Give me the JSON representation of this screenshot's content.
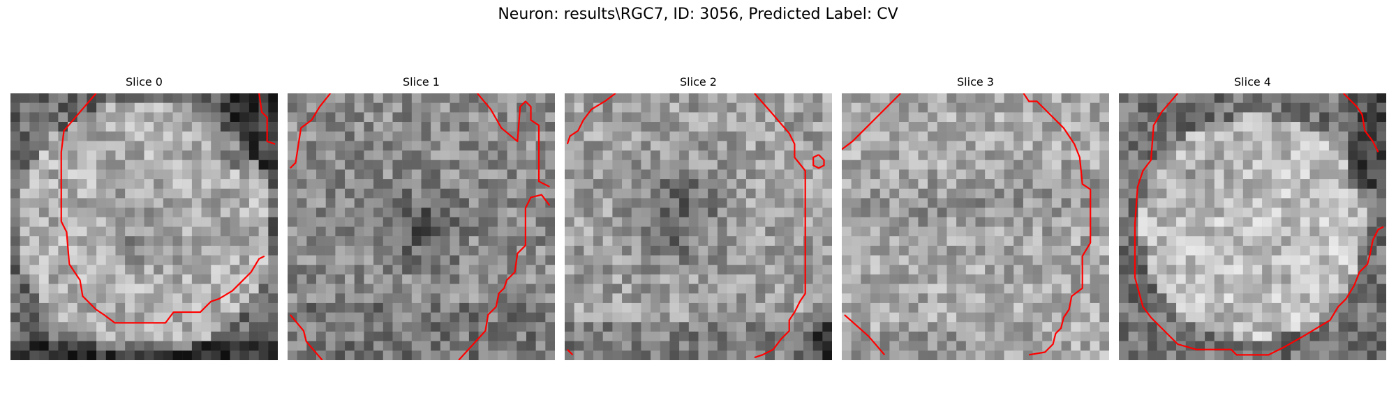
{
  "figure": {
    "title": "Neuron: results\\RGC7, ID: 3056, Predicted Label: CV"
  },
  "overlay_color": "#ff0000",
  "panels": [
    {
      "title": "Slice 0",
      "seed": 11,
      "profile": "bright_ring_dark_corners",
      "contours": [
        [
          [
            0.32,
            0.0
          ],
          [
            0.26,
            0.07
          ],
          [
            0.2,
            0.14
          ],
          [
            0.19,
            0.22
          ],
          [
            0.19,
            0.48
          ],
          [
            0.21,
            0.52
          ],
          [
            0.22,
            0.64
          ],
          [
            0.26,
            0.7
          ],
          [
            0.27,
            0.76
          ],
          [
            0.32,
            0.81
          ],
          [
            0.35,
            0.83
          ],
          [
            0.39,
            0.86
          ],
          [
            0.58,
            0.86
          ],
          [
            0.61,
            0.82
          ],
          [
            0.71,
            0.82
          ],
          [
            0.75,
            0.78
          ],
          [
            0.78,
            0.77
          ],
          [
            0.83,
            0.74
          ],
          [
            0.86,
            0.71
          ],
          [
            0.9,
            0.67
          ],
          [
            0.93,
            0.62
          ],
          [
            0.95,
            0.61
          ]
        ],
        [
          [
            0.93,
            0.0
          ],
          [
            0.94,
            0.07
          ],
          [
            0.96,
            0.09
          ],
          [
            0.96,
            0.18
          ],
          [
            0.99,
            0.19
          ]
        ]
      ]
    },
    {
      "title": "Slice 1",
      "seed": 23,
      "profile": "noisy_dark_nucleus",
      "contours": [
        [
          [
            0.16,
            0.0
          ],
          [
            0.12,
            0.05
          ],
          [
            0.09,
            0.1
          ],
          [
            0.05,
            0.13
          ],
          [
            0.03,
            0.26
          ],
          [
            0.01,
            0.28
          ]
        ],
        [
          [
            0.71,
            0.0
          ],
          [
            0.76,
            0.06
          ],
          [
            0.8,
            0.13
          ],
          [
            0.86,
            0.18
          ],
          [
            0.87,
            0.05
          ],
          [
            0.89,
            0.03
          ],
          [
            0.91,
            0.05
          ],
          [
            0.91,
            0.1
          ],
          [
            0.94,
            0.12
          ],
          [
            0.94,
            0.33
          ],
          [
            0.98,
            0.35
          ]
        ],
        [
          [
            0.98,
            0.42
          ],
          [
            0.95,
            0.38
          ],
          [
            0.91,
            0.39
          ],
          [
            0.89,
            0.43
          ],
          [
            0.89,
            0.57
          ],
          [
            0.86,
            0.6
          ],
          [
            0.85,
            0.67
          ],
          [
            0.82,
            0.7
          ],
          [
            0.81,
            0.73
          ],
          [
            0.79,
            0.75
          ],
          [
            0.78,
            0.8
          ],
          [
            0.75,
            0.83
          ],
          [
            0.74,
            0.89
          ],
          [
            0.64,
            1.0
          ]
        ],
        [
          [
            0.01,
            0.83
          ],
          [
            0.06,
            0.89
          ],
          [
            0.07,
            0.93
          ],
          [
            0.13,
            1.0
          ]
        ]
      ]
    },
    {
      "title": "Slice 2",
      "seed": 37,
      "profile": "dark_center_blob",
      "contours": [
        [
          [
            0.19,
            0.0
          ],
          [
            0.15,
            0.03
          ],
          [
            0.1,
            0.06
          ],
          [
            0.07,
            0.1
          ],
          [
            0.05,
            0.14
          ],
          [
            0.02,
            0.16
          ],
          [
            0.01,
            0.19
          ]
        ],
        [
          [
            0.71,
            0.0
          ],
          [
            0.78,
            0.08
          ],
          [
            0.84,
            0.15
          ],
          [
            0.86,
            0.19
          ],
          [
            0.86,
            0.24
          ],
          [
            0.9,
            0.29
          ],
          [
            0.9,
            0.75
          ],
          [
            0.88,
            0.78
          ],
          [
            0.86,
            0.82
          ],
          [
            0.84,
            0.85
          ],
          [
            0.84,
            0.89
          ],
          [
            0.81,
            0.92
          ],
          [
            0.78,
            0.96
          ],
          [
            0.74,
            0.98
          ],
          [
            0.71,
            0.99
          ]
        ],
        [
          [
            0.95,
            0.23
          ],
          [
            0.97,
            0.25
          ],
          [
            0.97,
            0.27
          ],
          [
            0.95,
            0.28
          ],
          [
            0.93,
            0.27
          ],
          [
            0.93,
            0.24
          ],
          [
            0.95,
            0.23
          ]
        ],
        [
          [
            0.01,
            0.96
          ],
          [
            0.03,
            0.98
          ]
        ]
      ]
    },
    {
      "title": "Slice 3",
      "seed": 53,
      "profile": "uniform_light",
      "contours": [
        [
          [
            0.22,
            0.0
          ],
          [
            0.14,
            0.08
          ],
          [
            0.09,
            0.13
          ],
          [
            0.04,
            0.18
          ],
          [
            0.0,
            0.21
          ]
        ],
        [
          [
            0.68,
            0.0
          ],
          [
            0.7,
            0.03
          ],
          [
            0.73,
            0.03
          ],
          [
            0.78,
            0.08
          ],
          [
            0.83,
            0.13
          ],
          [
            0.87,
            0.19
          ],
          [
            0.89,
            0.24
          ],
          [
            0.9,
            0.34
          ],
          [
            0.93,
            0.36
          ],
          [
            0.93,
            0.56
          ],
          [
            0.9,
            0.61
          ],
          [
            0.9,
            0.73
          ],
          [
            0.86,
            0.76
          ],
          [
            0.85,
            0.81
          ],
          [
            0.83,
            0.84
          ],
          [
            0.82,
            0.88
          ],
          [
            0.8,
            0.9
          ],
          [
            0.79,
            0.94
          ],
          [
            0.76,
            0.97
          ],
          [
            0.7,
            0.98
          ]
        ],
        [
          [
            0.01,
            0.83
          ],
          [
            0.1,
            0.91
          ],
          [
            0.16,
            0.98
          ]
        ]
      ]
    },
    {
      "title": "Slice 4",
      "seed": 71,
      "profile": "bright_disc_dark_rim",
      "contours": [
        [
          [
            0.22,
            0.0
          ],
          [
            0.16,
            0.07
          ],
          [
            0.13,
            0.12
          ],
          [
            0.12,
            0.25
          ],
          [
            0.09,
            0.29
          ],
          [
            0.07,
            0.35
          ],
          [
            0.06,
            0.49
          ],
          [
            0.06,
            0.61
          ],
          [
            0.06,
            0.69
          ],
          [
            0.09,
            0.8
          ],
          [
            0.12,
            0.84
          ],
          [
            0.14,
            0.86
          ],
          [
            0.17,
            0.89
          ],
          [
            0.22,
            0.94
          ],
          [
            0.29,
            0.96
          ],
          [
            0.42,
            0.96
          ],
          [
            0.44,
            0.98
          ],
          [
            0.56,
            0.98
          ],
          [
            0.62,
            0.95
          ],
          [
            0.69,
            0.91
          ],
          [
            0.74,
            0.88
          ],
          [
            0.79,
            0.85
          ],
          [
            0.82,
            0.8
          ],
          [
            0.85,
            0.77
          ],
          [
            0.88,
            0.72
          ],
          [
            0.9,
            0.67
          ],
          [
            0.93,
            0.64
          ],
          [
            0.94,
            0.6
          ],
          [
            0.95,
            0.55
          ],
          [
            0.97,
            0.51
          ],
          [
            0.99,
            0.5
          ]
        ],
        [
          [
            0.84,
            0.0
          ],
          [
            0.89,
            0.05
          ],
          [
            0.91,
            0.08
          ],
          [
            0.92,
            0.14
          ],
          [
            0.95,
            0.18
          ],
          [
            0.97,
            0.22
          ]
        ]
      ]
    }
  ]
}
